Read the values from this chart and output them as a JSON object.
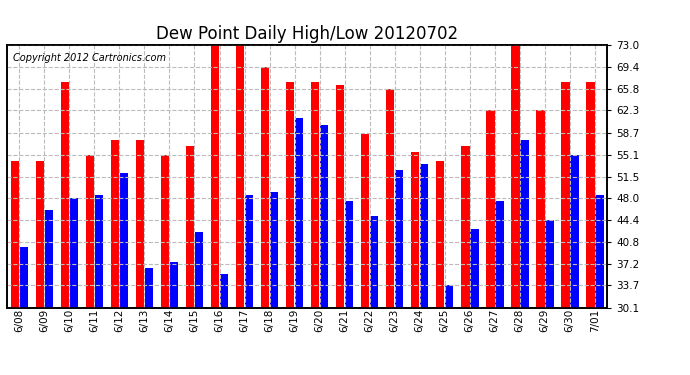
{
  "title": "Dew Point Daily High/Low 20120702",
  "copyright": "Copyright 2012 Cartronics.com",
  "dates": [
    "6/08",
    "6/09",
    "6/10",
    "6/11",
    "6/12",
    "6/13",
    "6/14",
    "6/15",
    "6/16",
    "6/17",
    "6/18",
    "6/19",
    "6/20",
    "6/21",
    "6/22",
    "6/23",
    "6/24",
    "6/25",
    "6/26",
    "6/27",
    "6/28",
    "6/29",
    "6/30",
    "7/01"
  ],
  "highs": [
    54.0,
    54.0,
    67.0,
    55.0,
    57.5,
    57.5,
    55.0,
    56.5,
    73.0,
    73.0,
    69.4,
    67.0,
    67.0,
    66.5,
    58.5,
    65.8,
    55.5,
    54.0,
    56.5,
    62.3,
    73.0,
    62.3,
    67.0,
    67.0
  ],
  "lows": [
    40.0,
    46.0,
    48.0,
    48.5,
    52.0,
    36.5,
    37.5,
    42.5,
    35.5,
    48.5,
    49.0,
    61.0,
    60.0,
    47.5,
    45.0,
    52.5,
    53.5,
    33.7,
    43.0,
    47.5,
    57.5,
    44.4,
    55.0,
    48.5
  ],
  "high_color": "#ff0000",
  "low_color": "#0000ff",
  "bg_color": "#ffffff",
  "plot_bg": "#ffffff",
  "grid_color": "#bbbbbb",
  "ylim_min": 30.1,
  "ylim_max": 73.0,
  "yticks": [
    30.1,
    33.7,
    37.2,
    40.8,
    44.4,
    48.0,
    51.5,
    55.1,
    58.7,
    62.3,
    65.8,
    69.4,
    73.0
  ],
  "title_fontsize": 12,
  "copyright_fontsize": 7,
  "tick_fontsize": 7.5,
  "bar_width": 0.35,
  "bar_gap": 0.01
}
